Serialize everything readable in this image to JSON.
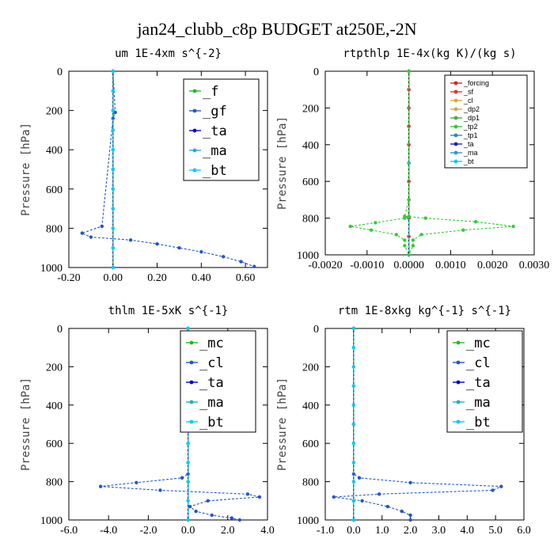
{
  "figure_title": "jan24_clubb_c8p  BUDGET at250E,-2N",
  "chart_data": [
    {
      "type": "line",
      "title": "um  1E-4xm s^{-2}",
      "ylabel": "Pressure [hPa]",
      "xlim": [
        -0.2,
        0.7
      ],
      "ylim": [
        1000,
        0
      ],
      "xticks": [
        "-0.20",
        "0.00",
        "0.20",
        "0.40",
        "0.60"
      ],
      "xtick_values": [
        -0.2,
        0.0,
        0.2,
        0.4,
        0.6
      ],
      "yticks": [
        "0",
        "200",
        "400",
        "600",
        "800",
        "1000"
      ],
      "ytick_values": [
        0,
        200,
        400,
        600,
        800,
        1000
      ],
      "legend_style": "large",
      "series": [
        {
          "name": "_f",
          "color": "#22bb22",
          "x": [
            0,
            0,
            0,
            0,
            0,
            0,
            0,
            0,
            0,
            0,
            0
          ],
          "y": [
            0,
            100,
            200,
            300,
            400,
            500,
            600,
            700,
            800,
            900,
            1000
          ]
        },
        {
          "name": "_gf",
          "color": "#2255cc",
          "x": [
            0.0,
            0.01,
            0.0,
            -0.05,
            -0.14,
            -0.1,
            0.08,
            0.2,
            0.3,
            0.4,
            0.5,
            0.58,
            0.64
          ],
          "y": [
            0,
            210,
            240,
            790,
            825,
            845,
            860,
            880,
            900,
            920,
            945,
            970,
            995
          ]
        },
        {
          "name": "_ta",
          "color": "#0000dd",
          "x": [
            0,
            0,
            0
          ],
          "y": [
            0,
            500,
            1000
          ]
        },
        {
          "name": "_ma",
          "color": "#22aacc",
          "x": [
            0,
            0,
            0
          ],
          "y": [
            0,
            500,
            1000
          ]
        },
        {
          "name": "_bt",
          "color": "#00ccff",
          "x": [
            0,
            0,
            0,
            0,
            0,
            0,
            0,
            0,
            0,
            0,
            0
          ],
          "y": [
            0,
            100,
            200,
            300,
            400,
            500,
            600,
            700,
            800,
            900,
            1000
          ]
        }
      ]
    },
    {
      "type": "line",
      "title": "rtpthlp  1E-4x(kg K)/(kg s)",
      "ylabel": "Pressure [hPa]",
      "xlim": [
        -0.002,
        0.003
      ],
      "ylim": [
        1000,
        0
      ],
      "xticks": [
        "-0.0020",
        "-0.0010",
        "0.0000",
        "0.0010",
        "0.0020",
        "0.0030"
      ],
      "xtick_values": [
        -0.002,
        -0.001,
        0.0,
        0.001,
        0.002,
        0.003
      ],
      "yticks": [
        "0",
        "200",
        "400",
        "600",
        "800",
        "1000"
      ],
      "ytick_values": [
        0,
        200,
        400,
        600,
        800,
        1000
      ],
      "legend_style": "small",
      "series": [
        {
          "name": "_forcing",
          "color": "#dd2222",
          "x": [
            0,
            0,
            0,
            0,
            0,
            0,
            0,
            0,
            0,
            0,
            0
          ],
          "y": [
            0,
            100,
            200,
            300,
            400,
            500,
            600,
            700,
            800,
            900,
            1000
          ]
        },
        {
          "name": "_sf",
          "color": "#dd3333",
          "x": [
            0,
            0,
            0,
            0,
            0,
            0,
            0,
            0,
            0,
            0,
            0
          ],
          "y": [
            0,
            100,
            200,
            300,
            400,
            500,
            600,
            700,
            800,
            900,
            1000
          ]
        },
        {
          "name": "_cl",
          "color": "#ddaa22",
          "x": [
            0,
            0,
            0
          ],
          "y": [
            0,
            500,
            1000
          ]
        },
        {
          "name": "_dp2",
          "color": "#ccaa44",
          "x": [
            0,
            0,
            0
          ],
          "y": [
            0,
            500,
            1000
          ]
        },
        {
          "name": "_dp1",
          "color": "#44aa44",
          "x": [
            0,
            0,
            0
          ],
          "y": [
            0,
            500,
            1000
          ]
        },
        {
          "name": "_tp2",
          "color": "#33cc33",
          "x": [
            0.0,
            0.0,
            -0.0001,
            0.0004,
            0.0016,
            0.0025,
            0.0013,
            0.0003,
            0.0001,
            0.0001,
            0.0
          ],
          "y": [
            0,
            700,
            790,
            800,
            820,
            845,
            865,
            890,
            920,
            950,
            1000
          ]
        },
        {
          "name": "_tp1",
          "color": "#3388aa",
          "x": [
            0,
            0,
            0
          ],
          "y": [
            0,
            500,
            1000
          ]
        },
        {
          "name": "_ta",
          "color": "#2222aa",
          "x": [
            0,
            0,
            0
          ],
          "y": [
            0,
            500,
            1000
          ]
        },
        {
          "name": "_ma",
          "color": "#2299dd",
          "x": [
            0,
            0,
            0
          ],
          "y": [
            0,
            500,
            1000
          ]
        },
        {
          "name": "_bt",
          "color": "#00ccff",
          "x": [
            0,
            0,
            0
          ],
          "y": [
            0,
            500,
            1000
          ]
        },
        {
          "name": "",
          "color": "#33cc33",
          "x": [
            0.0,
            0.0,
            -0.0001,
            -0.0008,
            -0.0014,
            -0.0009,
            -0.0003,
            -0.0001,
            -0.0001,
            0.0
          ],
          "y": [
            0,
            790,
            800,
            825,
            845,
            865,
            890,
            920,
            950,
            1000
          ]
        }
      ]
    },
    {
      "type": "line",
      "title": "thlm  1E-5xK s^{-1}",
      "ylabel": "Pressure [hPa]",
      "xlim": [
        -6.0,
        4.0
      ],
      "ylim": [
        1000,
        0
      ],
      "xticks": [
        "-6.0",
        "-4.0",
        "-2.0",
        "0.0",
        "2.0",
        "4.0"
      ],
      "xtick_values": [
        -6.0,
        -4.0,
        -2.0,
        0.0,
        2.0,
        4.0
      ],
      "yticks": [
        "0",
        "200",
        "400",
        "600",
        "800",
        "1000"
      ],
      "ytick_values": [
        0,
        200,
        400,
        600,
        800,
        1000
      ],
      "legend_style": "large",
      "series": [
        {
          "name": "_mc",
          "color": "#22bb22",
          "x": [
            0,
            0,
            0,
            0,
            0,
            0,
            0,
            0,
            0,
            0,
            0
          ],
          "y": [
            0,
            100,
            200,
            300,
            400,
            500,
            600,
            700,
            800,
            900,
            1000
          ]
        },
        {
          "name": "_cl",
          "color": "#2255cc",
          "x": [
            0.0,
            0.0,
            -0.3,
            -2.6,
            -4.4,
            -1.4,
            3.0,
            3.6,
            1.0,
            0.1,
            0.4,
            1.2,
            2.2,
            2.6
          ],
          "y": [
            0,
            760,
            780,
            805,
            825,
            845,
            865,
            880,
            900,
            930,
            955,
            975,
            990,
            1000
          ]
        },
        {
          "name": "_ta",
          "color": "#0000dd",
          "x": [
            0,
            0,
            0
          ],
          "y": [
            0,
            500,
            1000
          ]
        },
        {
          "name": "_ma",
          "color": "#22aacc",
          "x": [
            0,
            0,
            0
          ],
          "y": [
            0,
            500,
            1000
          ]
        },
        {
          "name": "_bt",
          "color": "#00ccff",
          "x": [
            0,
            0,
            0,
            0,
            0,
            0,
            0,
            0,
            0,
            0,
            0
          ],
          "y": [
            0,
            100,
            200,
            300,
            400,
            500,
            600,
            700,
            800,
            900,
            1000
          ]
        }
      ]
    },
    {
      "type": "line",
      "title": "rtm  1E-8xkg kg^{-1} s^{-1}",
      "ylabel": "Pressure [hPa]",
      "xlim": [
        -1.0,
        6.0
      ],
      "ylim": [
        1000,
        0
      ],
      "xticks": [
        "-1.0",
        "0.0",
        "1.0",
        "2.0",
        "3.0",
        "4.0",
        "5.0",
        "6.0"
      ],
      "xtick_values": [
        -1.0,
        0.0,
        1.0,
        2.0,
        3.0,
        4.0,
        5.0,
        6.0
      ],
      "yticks": [
        "0",
        "200",
        "400",
        "600",
        "800",
        "1000"
      ],
      "ytick_values": [
        0,
        200,
        400,
        600,
        800,
        1000
      ],
      "legend_style": "large",
      "series": [
        {
          "name": "_mc",
          "color": "#22bb22",
          "x": [
            0,
            0,
            0,
            0,
            0,
            0,
            0,
            0,
            0,
            0,
            0
          ],
          "y": [
            0,
            100,
            200,
            300,
            400,
            500,
            600,
            700,
            800,
            900,
            1000
          ]
        },
        {
          "name": "_cl",
          "color": "#2255cc",
          "x": [
            0.0,
            0.0,
            0.2,
            2.0,
            5.2,
            4.9,
            0.9,
            -0.7,
            0.3,
            1.2,
            1.7,
            2.0,
            2.0
          ],
          "y": [
            0,
            760,
            780,
            805,
            825,
            845,
            865,
            880,
            900,
            930,
            955,
            975,
            1000
          ]
        },
        {
          "name": "_ta",
          "color": "#0000dd",
          "x": [
            0,
            0,
            0
          ],
          "y": [
            0,
            500,
            1000
          ]
        },
        {
          "name": "_ma",
          "color": "#22aacc",
          "x": [
            0,
            0,
            0
          ],
          "y": [
            0,
            500,
            1000
          ]
        },
        {
          "name": "_bt",
          "color": "#00ccff",
          "x": [
            0,
            0,
            0,
            0,
            0,
            0,
            0,
            0,
            0,
            0,
            0
          ],
          "y": [
            0,
            100,
            200,
            300,
            400,
            500,
            600,
            700,
            800,
            900,
            1000
          ]
        }
      ]
    }
  ]
}
